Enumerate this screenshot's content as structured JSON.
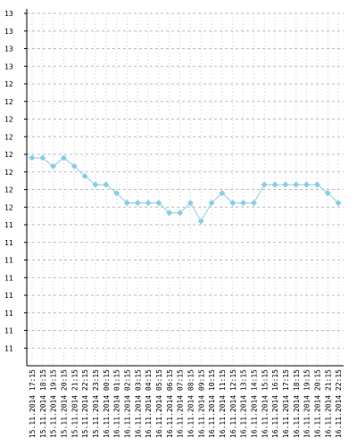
{
  "chart_data": {
    "type": "line",
    "categories": [
      "15.11.2014 17:15",
      "15.11.2014 18:15",
      "15.11.2014 19:15",
      "15.11.2014 20:15",
      "15.11.2014 21:15",
      "15.11.2014 22:15",
      "15.11.2014 23:15",
      "16.11.2014 00:15",
      "16.11.2014 01:15",
      "16.11.2014 02:15",
      "16.11.2014 03:15",
      "16.11.2014 04:15",
      "16.11.2014 05:15",
      "16.11.2014 06:15",
      "16.11.2014 07:15",
      "16.11.2014 08:15",
      "16.11.2014 09:15",
      "16.11.2014 10:15",
      "16.11.2014 11:15",
      "16.11.2014 12:15",
      "16.11.2014 13:15",
      "16.11.2014 14:15",
      "16.11.2014 15:15",
      "16.11.2014 16:15",
      "16.11.2014 17:15",
      "16.11.2014 18:15",
      "16.11.2014 19:15",
      "16.11.2014 20:15",
      "16.11.2014 21:15",
      "16.11.2014 22:15"
    ],
    "series": [
      {
        "name": "value",
        "color": "#87cde6",
        "values": [
          11.85,
          11.85,
          11.79,
          11.85,
          11.79,
          11.72,
          11.66,
          11.66,
          11.6,
          11.53,
          11.53,
          11.53,
          11.53,
          11.46,
          11.46,
          11.53,
          11.4,
          11.53,
          11.6,
          11.53,
          11.53,
          11.53,
          11.66,
          11.66,
          11.66,
          11.66,
          11.66,
          11.66,
          11.6,
          11.53
        ]
      }
    ],
    "ylim": [
      10.375,
      12.875
    ],
    "yticks": [
      {
        "value": 12.875,
        "label": "13"
      },
      {
        "value": 12.75,
        "label": "13"
      },
      {
        "value": 12.625,
        "label": "13"
      },
      {
        "value": 12.5,
        "label": "13"
      },
      {
        "value": 12.375,
        "label": "12"
      },
      {
        "value": 12.25,
        "label": "12"
      },
      {
        "value": 12.125,
        "label": "12"
      },
      {
        "value": 12.0,
        "label": "12"
      },
      {
        "value": 11.875,
        "label": "12"
      },
      {
        "value": 11.75,
        "label": "12"
      },
      {
        "value": 11.625,
        "label": "12"
      },
      {
        "value": 11.5,
        "label": "12"
      },
      {
        "value": 11.375,
        "label": "11"
      },
      {
        "value": 11.25,
        "label": "11"
      },
      {
        "value": 11.125,
        "label": "11"
      },
      {
        "value": 11.0,
        "label": "11"
      },
      {
        "value": 10.875,
        "label": "11"
      },
      {
        "value": 10.75,
        "label": "11"
      },
      {
        "value": 10.625,
        "label": "11"
      },
      {
        "value": 10.5,
        "label": "11"
      }
    ],
    "grid": true
  }
}
